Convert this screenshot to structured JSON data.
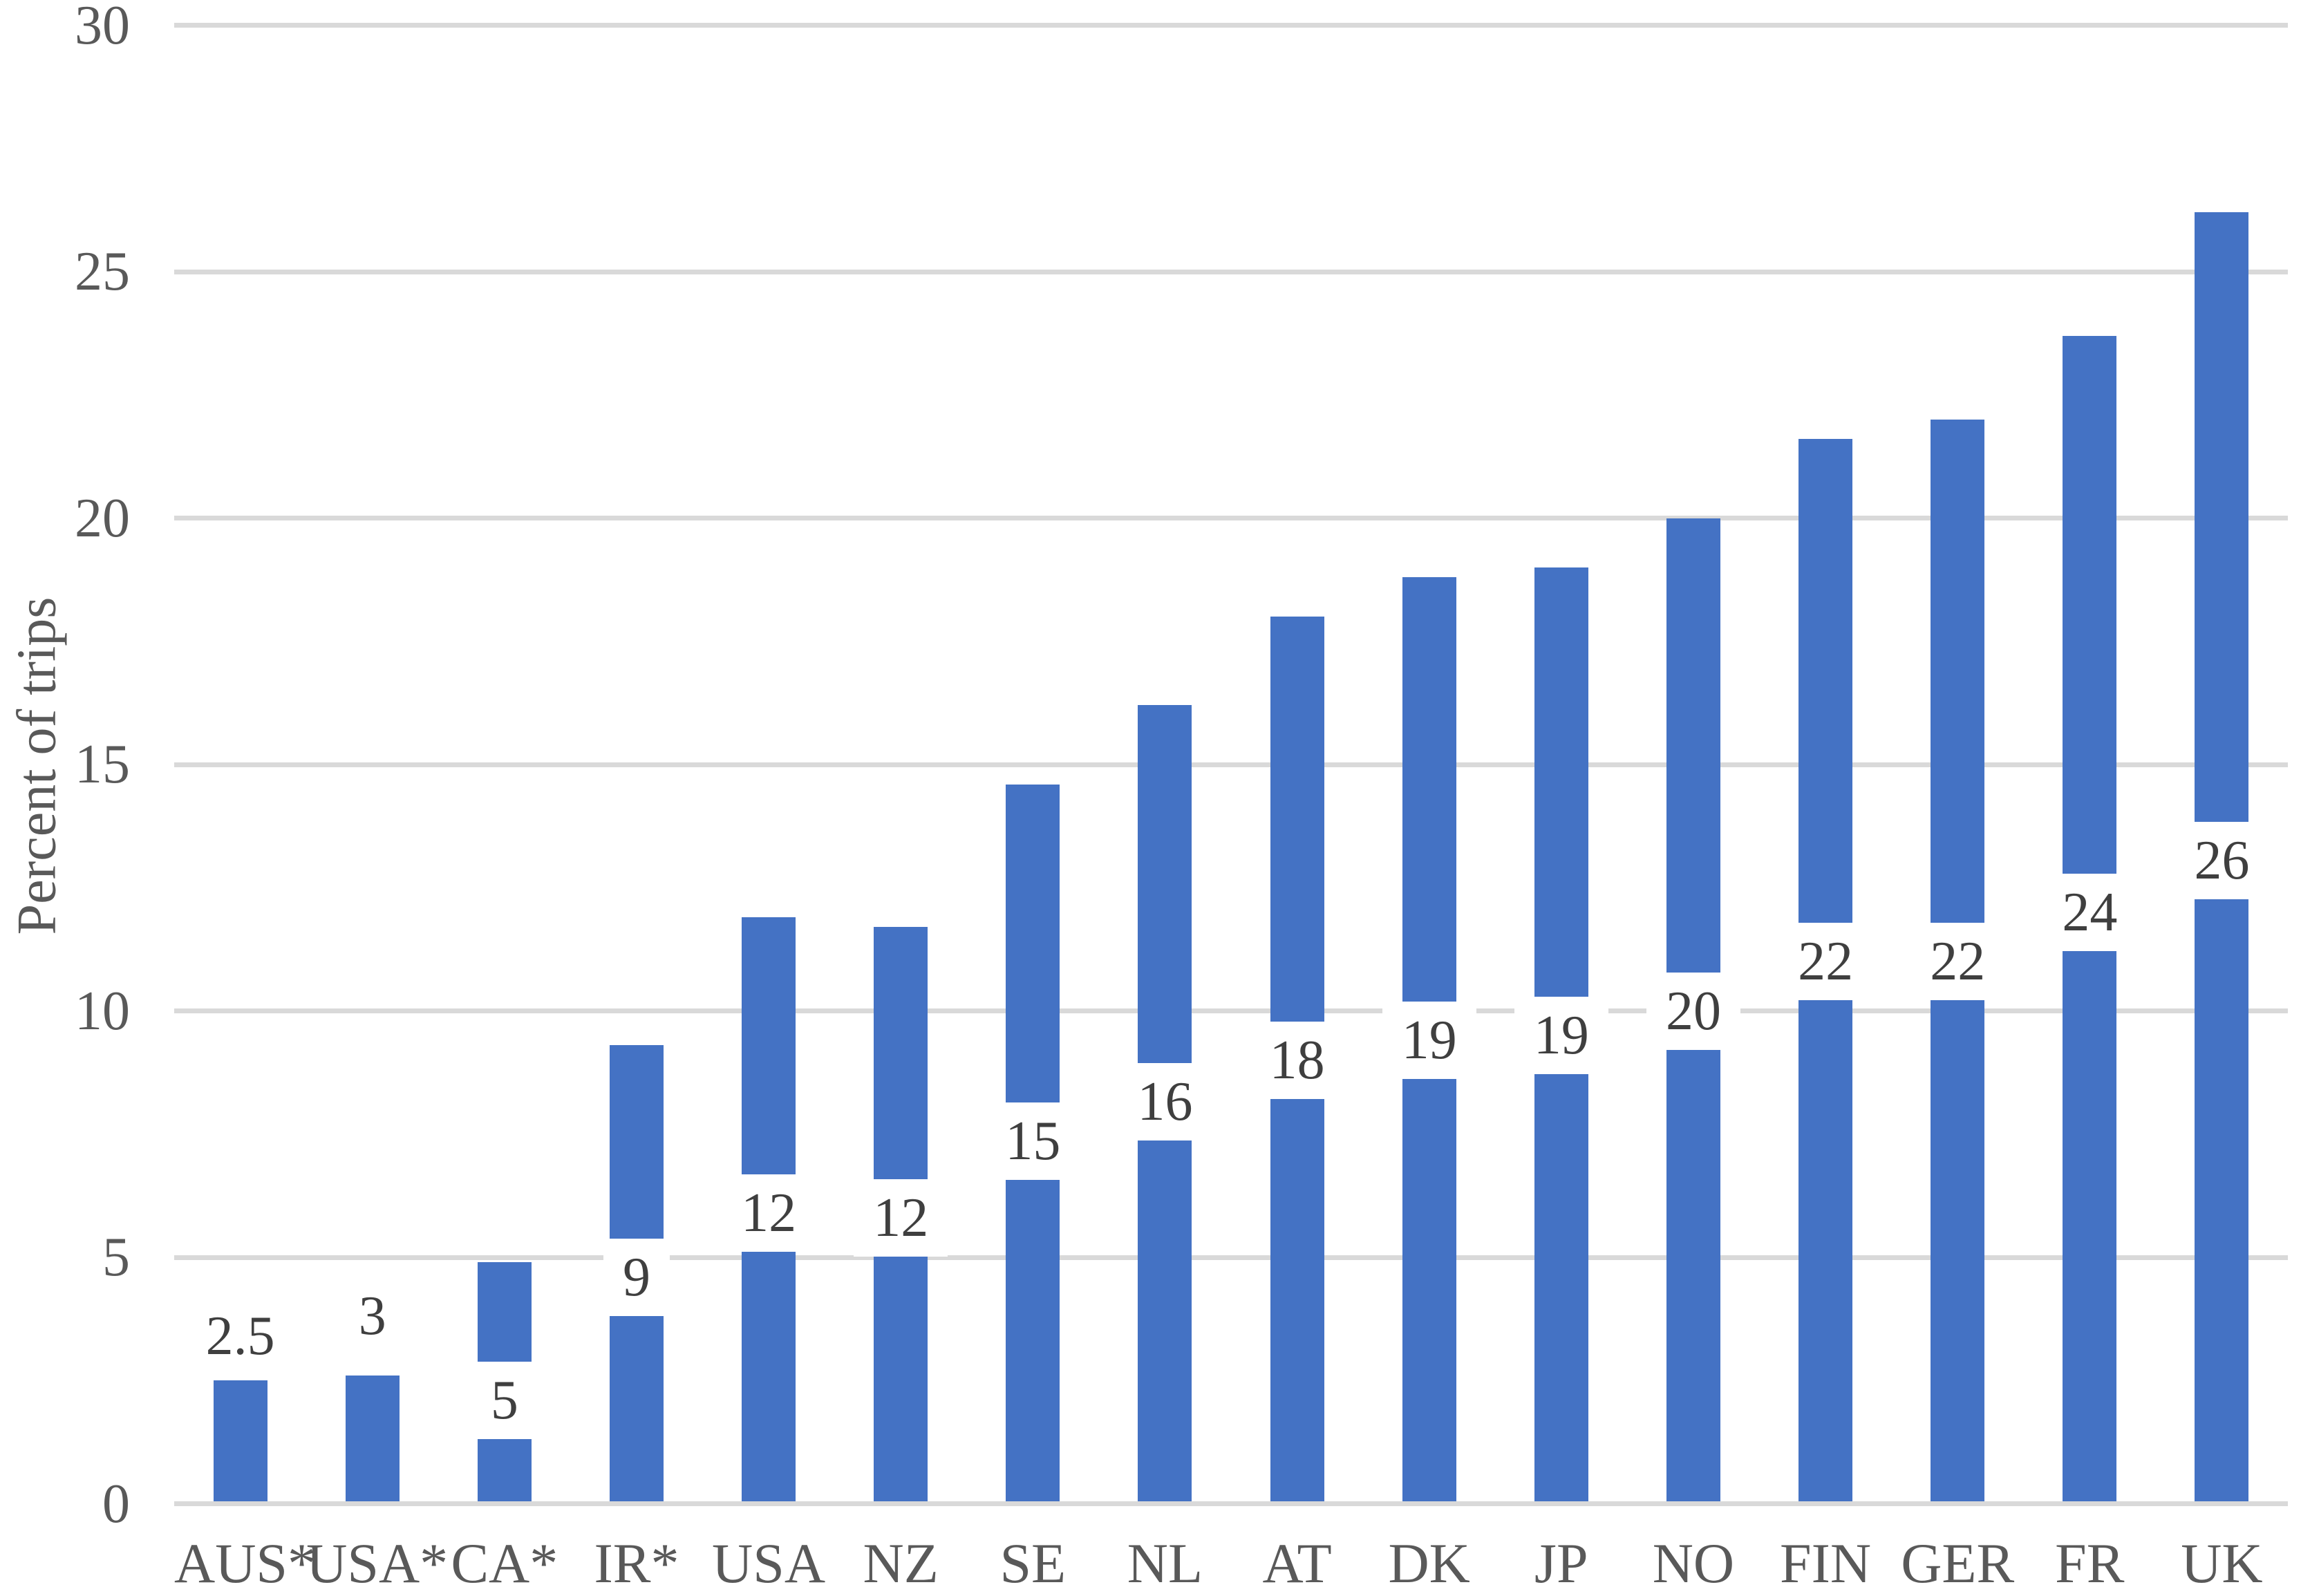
{
  "chart_data": {
    "type": "bar",
    "title": "",
    "ylabel": "Percent of trips",
    "xlabel": "",
    "ylim": [
      0,
      30
    ],
    "yticks": [
      0,
      5,
      10,
      15,
      20,
      25,
      30
    ],
    "grid": "horizontal",
    "legend": "none",
    "categories": [
      "AUS*",
      "USA*",
      "CA*",
      "IR*",
      "USA",
      "NZ",
      "SE",
      "NL",
      "AT",
      "DK",
      "JP",
      "NO",
      "FIN",
      "GER",
      "FR",
      "UK"
    ],
    "series": [
      {
        "name": "Percent of trips",
        "values": [
          2.5,
          2.6,
          4.9,
          9.3,
          11.9,
          11.7,
          14.6,
          16.2,
          18.0,
          18.8,
          19.0,
          20.0,
          21.6,
          22.0,
          23.7,
          26.2
        ],
        "data_labels": [
          "2.5",
          "3",
          "5",
          "9",
          "12",
          "12",
          "15",
          "16",
          "18",
          "19",
          "19",
          "20",
          "22",
          "22",
          "24",
          "26"
        ],
        "label_placement": [
          "above",
          "above",
          "inside",
          "inside",
          "inside",
          "inside",
          "inside",
          "inside",
          "inside",
          "inside",
          "inside",
          "inside",
          "inside",
          "inside",
          "inside",
          "inside"
        ],
        "label_center_units": [
          3.4,
          3.81,
          2.09,
          4.6,
          5.9,
          5.8,
          7.35,
          8.15,
          9.0,
          9.4,
          9.5,
          10.0,
          11.0,
          11.0,
          12.0,
          13.05
        ]
      }
    ],
    "colors": {
      "bar": "#4472C4",
      "gridline": "#D9D9D9",
      "axis_text": "#595959",
      "data_label_text": "#3F3F3F",
      "label_box_background": "#FFFFFF",
      "background": "#FFFFFF"
    }
  }
}
